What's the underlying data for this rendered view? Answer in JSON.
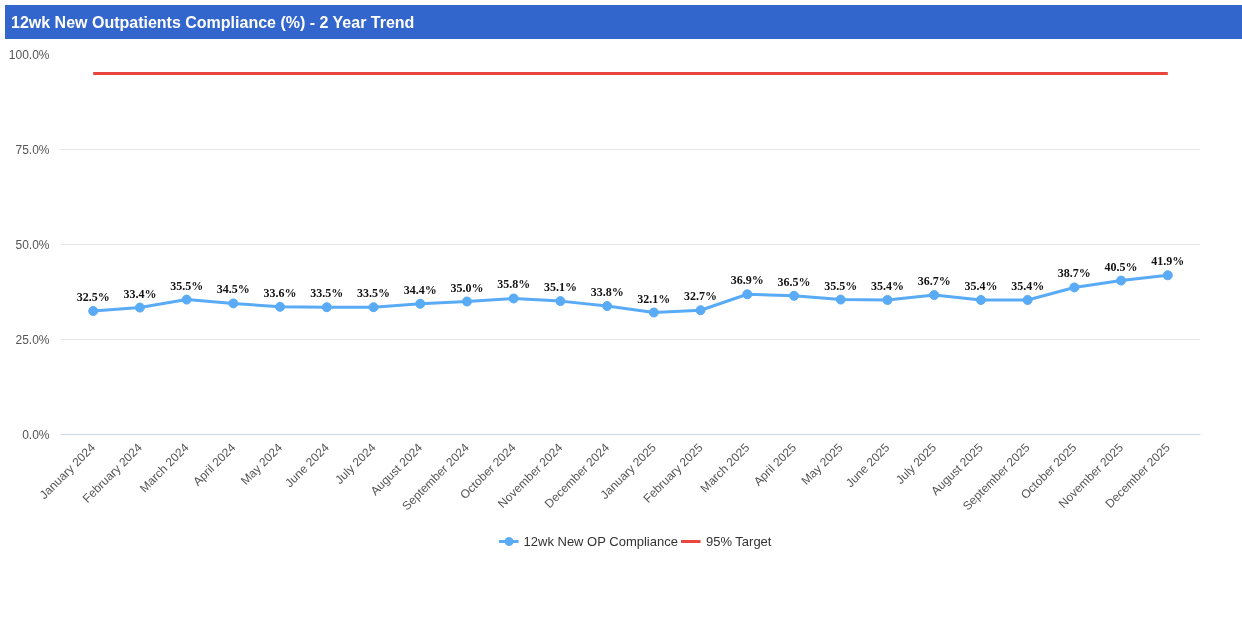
{
  "chart_data": {
    "type": "line",
    "title": "12wk New Outpatients Compliance (%) - 2 Year Trend",
    "categories": [
      "January 2024",
      "February 2024",
      "March 2024",
      "April 2024",
      "May 2024",
      "June 2024",
      "July 2024",
      "August 2024",
      "September 2024",
      "October 2024",
      "November 2024",
      "December 2024",
      "January 2025",
      "February 2025",
      "March 2025",
      "April 2025",
      "May 2025",
      "June 2025",
      "July 2025",
      "August 2025",
      "September 2025",
      "October 2025",
      "November 2025",
      "December 2025"
    ],
    "series": [
      {
        "name": "12wk New OP Compliance",
        "color": "#5aabf5",
        "marker": "circle",
        "values": [
          32.5,
          33.4,
          35.5,
          34.5,
          33.6,
          33.5,
          33.5,
          34.4,
          35.0,
          35.8,
          35.1,
          33.8,
          32.1,
          32.7,
          36.9,
          36.5,
          35.5,
          35.4,
          36.7,
          35.4,
          35.4,
          38.7,
          40.5,
          41.9
        ],
        "value_labels": [
          "32.5%",
          "33.4%",
          "35.5%",
          "34.5%",
          "33.6%",
          "33.5%",
          "33.5%",
          "34.4%",
          "35.0%",
          "35.8%",
          "35.1%",
          "33.8%",
          "32.1%",
          "32.7%",
          "36.9%",
          "36.5%",
          "35.5%",
          "35.4%",
          "36.7%",
          "35.4%",
          "35.4%",
          "38.7%",
          "40.5%",
          "41.9%"
        ]
      },
      {
        "name": "95% Target",
        "color": "#e8463f",
        "marker": "none",
        "values": [
          95,
          95,
          95,
          95,
          95,
          95,
          95,
          95,
          95,
          95,
          95,
          95,
          95,
          95,
          95,
          95,
          95,
          95,
          95,
          95,
          95,
          95,
          95,
          95
        ]
      }
    ],
    "ylim": [
      0,
      100
    ],
    "yticks": [
      {
        "value": 0,
        "label": "0.0%"
      },
      {
        "value": 25,
        "label": "25.0%"
      },
      {
        "value": 50,
        "label": "50.0%"
      },
      {
        "value": 75,
        "label": "75.0%"
      },
      {
        "value": 100,
        "label": "100.0%"
      }
    ],
    "grid": "y",
    "legend": "bottom"
  }
}
